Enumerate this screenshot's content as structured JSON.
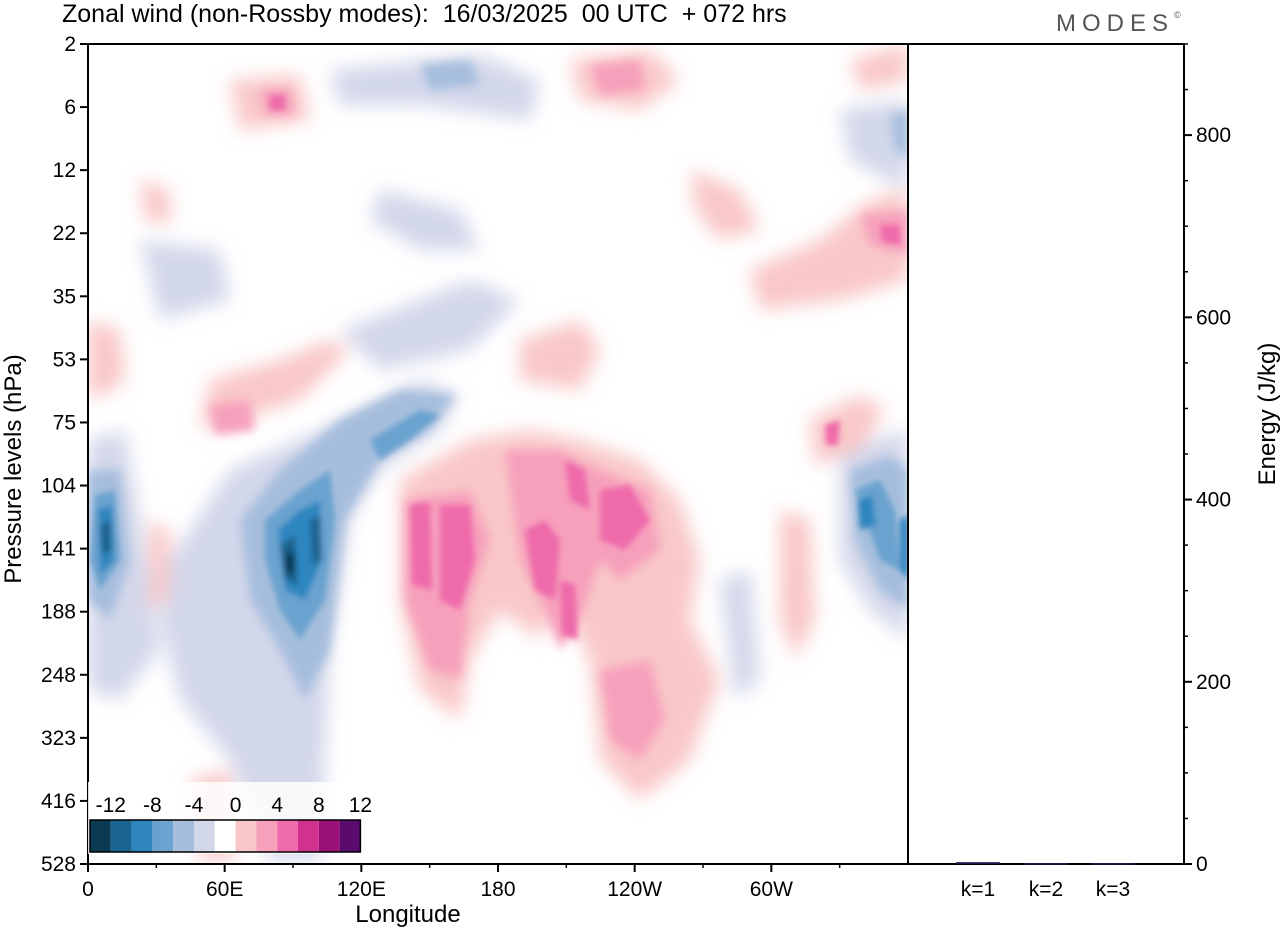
{
  "header": {
    "title": "Zonal wind (non-Rossby modes):  16/03/2025  00 UTC  + 072 hrs",
    "brand": "MODES",
    "brand_mark": "©"
  },
  "chart_data": [
    {
      "type": "heatmap",
      "title": "Zonal wind (non-Rossby modes):  16/03/2025  00 UTC  + 072 hrs",
      "xlabel": "Longitude",
      "ylabel": "Pressure levels (hPa)",
      "x_ticks": [
        "0",
        "60E",
        "120E",
        "180",
        "120W",
        "60W"
      ],
      "x_tick_values": [
        0,
        60,
        120,
        180,
        240,
        300
      ],
      "xlim": [
        0,
        360
      ],
      "y_ticks": [
        "2",
        "6",
        "12",
        "22",
        "35",
        "53",
        "75",
        "104",
        "141",
        "188",
        "248",
        "323",
        "416",
        "528"
      ],
      "colorbar": {
        "labels": [
          "-12",
          "-8",
          "-4",
          "0",
          "4",
          "8",
          "12"
        ],
        "levels": [
          -14,
          -12,
          -10,
          -8,
          -6,
          -4,
          -2,
          2,
          4,
          6,
          8,
          10,
          12,
          14
        ],
        "colors": [
          "#0b3a55",
          "#1a6391",
          "#2f86bf",
          "#6aa3cf",
          "#a6bedd",
          "#d3d7ea",
          "#ffffff",
          "#f9c7c7",
          "#f6a0bc",
          "#ef6aaa",
          "#d0328e",
          "#9b1077",
          "#5b0a6e"
        ]
      },
      "features": [
        {
          "lon": 8,
          "level": 141,
          "value": -13
        },
        {
          "lon": 88,
          "level": 141,
          "value": -14
        },
        {
          "lon": 97,
          "level": 130,
          "value": -11
        },
        {
          "lon": 110,
          "level": 95,
          "value": -9
        },
        {
          "lon": 150,
          "level": 4,
          "value": -8
        },
        {
          "lon": 356,
          "level": 135,
          "value": -10
        },
        {
          "lon": 148,
          "level": 150,
          "value": 9
        },
        {
          "lon": 193,
          "level": 160,
          "value": 10
        },
        {
          "lon": 212,
          "level": 115,
          "value": 8
        },
        {
          "lon": 240,
          "level": 130,
          "value": 8
        },
        {
          "lon": 240,
          "level": 270,
          "value": 6
        },
        {
          "lon": 82,
          "level": 5,
          "value": 6
        },
        {
          "lon": 226,
          "level": 4,
          "value": 6
        },
        {
          "lon": 353,
          "level": 22,
          "value": 6
        },
        {
          "lon": 58,
          "level": 77,
          "value": 5
        },
        {
          "lon": 325,
          "level": 80,
          "value": 5
        }
      ]
    },
    {
      "type": "bar",
      "categories": [
        "k=1",
        "k=2",
        "k=3"
      ],
      "values": [
        2,
        1,
        1
      ],
      "ylabel": "Energy (J/kg)",
      "y_ticks": [
        "0",
        "200",
        "400",
        "600",
        "800"
      ],
      "ylim": [
        0,
        900
      ],
      "bar_color": "#1a1a4e"
    }
  ]
}
